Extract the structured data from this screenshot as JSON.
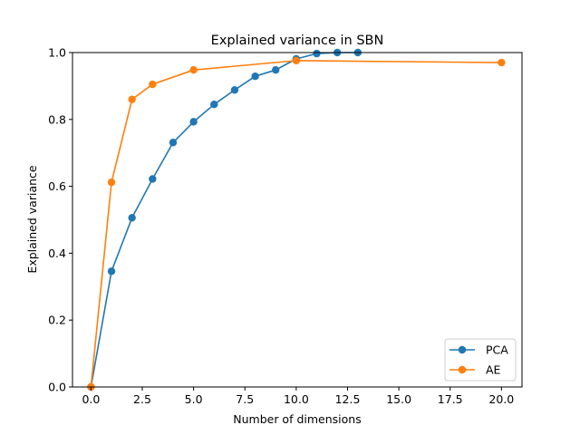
{
  "chart_data": {
    "type": "line",
    "title": "Explained variance in SBN",
    "xlabel": "Number of dimensions",
    "ylabel": "Explained variance",
    "xlim": [
      -0.9,
      21.0
    ],
    "ylim": [
      0.0,
      1.0
    ],
    "x_ticks": [
      0.0,
      2.5,
      5.0,
      7.5,
      10.0,
      12.5,
      15.0,
      17.5,
      20.0
    ],
    "x_tick_labels": [
      "0.0",
      "2.5",
      "5.0",
      "7.5",
      "10.0",
      "12.5",
      "15.0",
      "17.5",
      "20.0"
    ],
    "y_ticks": [
      0.0,
      0.2,
      0.4,
      0.6,
      0.8,
      1.0
    ],
    "y_tick_labels": [
      "0.0",
      "0.2",
      "0.4",
      "0.6",
      "0.8",
      "1.0"
    ],
    "grid": false,
    "legend_position": "lower-right",
    "series": [
      {
        "name": "PCA",
        "color": "#1f77b4",
        "marker": "circle",
        "x": [
          0,
          1,
          2,
          3,
          4,
          5,
          6,
          7,
          8,
          9,
          10,
          11,
          12,
          13
        ],
        "y": [
          0.0,
          0.346,
          0.506,
          0.622,
          0.731,
          0.793,
          0.845,
          0.888,
          0.929,
          0.948,
          0.981,
          0.997,
          1.0,
          1.0
        ]
      },
      {
        "name": "AE",
        "color": "#ff7f0e",
        "marker": "circle",
        "x": [
          0,
          1,
          2,
          3,
          5,
          10,
          20
        ],
        "y": [
          0.0,
          0.612,
          0.86,
          0.905,
          0.948,
          0.976,
          0.97
        ]
      }
    ]
  }
}
